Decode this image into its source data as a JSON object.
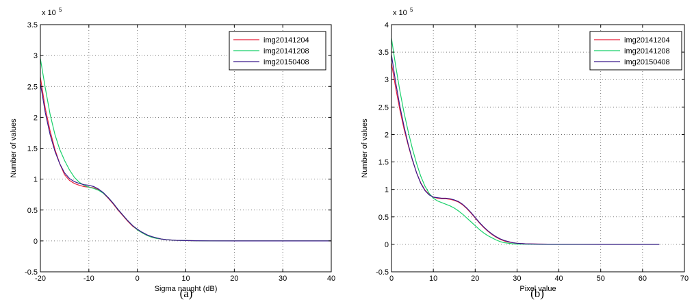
{
  "panel_labels": [
    "(a)",
    "(b)"
  ],
  "chart_data": [
    {
      "type": "line",
      "panel_label": "(a)",
      "xlabel": "Sigma naught (dB)",
      "ylabel": "Number of values",
      "exponent_label": "x 10",
      "exponent_power": "5",
      "xlim": [
        -20,
        40
      ],
      "ylim": [
        -0.5,
        3.5
      ],
      "xticks": [
        "-20",
        "-10",
        "0",
        "10",
        "20",
        "30",
        "40"
      ],
      "yticks": [
        "-0.5",
        "0",
        "0.5",
        "1",
        "1.5",
        "2",
        "2.5",
        "3",
        "3.5"
      ],
      "xtick_values": [
        -20,
        -10,
        0,
        10,
        20,
        30,
        40
      ],
      "ytick_values": [
        -0.5,
        0,
        0.5,
        1,
        1.5,
        2,
        2.5,
        3,
        3.5
      ],
      "grid": true,
      "legend_position": "top-right",
      "series": [
        {
          "name": "img20141204",
          "color": "#e8213b",
          "x": [
            -20,
            -19,
            -18,
            -17,
            -16,
            -15,
            -14,
            -13,
            -12,
            -11,
            -10,
            -9,
            -8,
            -7,
            -6,
            -5,
            -4,
            -3,
            -2,
            -1,
            0,
            1,
            2,
            3,
            4,
            5,
            6,
            8,
            10,
            12,
            15,
            20,
            25,
            30,
            35,
            40
          ],
          "y": [
            2.65,
            2.15,
            1.78,
            1.48,
            1.25,
            1.07,
            0.98,
            0.93,
            0.9,
            0.88,
            0.87,
            0.86,
            0.83,
            0.77,
            0.69,
            0.6,
            0.5,
            0.41,
            0.32,
            0.24,
            0.18,
            0.13,
            0.09,
            0.06,
            0.04,
            0.03,
            0.02,
            0.01,
            0.005,
            0.003,
            0.001,
            0,
            0,
            0,
            0,
            0
          ]
        },
        {
          "name": "img20141208",
          "color": "#19d16a",
          "x": [
            -20,
            -19,
            -18,
            -17,
            -16,
            -15,
            -14,
            -13,
            -12,
            -11,
            -10,
            -9,
            -8,
            -7,
            -6,
            -5,
            -4,
            -3,
            -2,
            -1,
            0,
            1,
            2,
            3,
            4,
            5,
            6,
            8,
            10,
            12,
            15,
            20,
            25,
            30,
            35,
            40
          ],
          "y": [
            2.95,
            2.48,
            2.05,
            1.72,
            1.48,
            1.3,
            1.15,
            1.03,
            0.95,
            0.9,
            0.87,
            0.85,
            0.82,
            0.77,
            0.7,
            0.61,
            0.51,
            0.42,
            0.33,
            0.25,
            0.18,
            0.13,
            0.09,
            0.06,
            0.04,
            0.03,
            0.02,
            0.01,
            0.005,
            0.003,
            0.001,
            0,
            0,
            0,
            0,
            0
          ]
        },
        {
          "name": "img20150408",
          "color": "#3a1a8c",
          "x": [
            -20,
            -19,
            -18,
            -17,
            -16,
            -15,
            -14,
            -13,
            -12,
            -11,
            -10,
            -9,
            -8,
            -7,
            -6,
            -5,
            -4,
            -3,
            -2,
            -1,
            0,
            1,
            2,
            3,
            4,
            5,
            6,
            8,
            10,
            12,
            15,
            20,
            25,
            30,
            35,
            40
          ],
          "y": [
            2.55,
            2.08,
            1.72,
            1.45,
            1.25,
            1.1,
            1.01,
            0.96,
            0.93,
            0.91,
            0.9,
            0.88,
            0.84,
            0.78,
            0.7,
            0.61,
            0.51,
            0.42,
            0.33,
            0.25,
            0.19,
            0.14,
            0.1,
            0.07,
            0.05,
            0.03,
            0.02,
            0.01,
            0.005,
            0.003,
            0.001,
            0,
            0,
            0,
            0,
            0
          ]
        }
      ]
    },
    {
      "type": "line",
      "panel_label": "(b)",
      "xlabel": "Pixel value",
      "ylabel": "Number of values",
      "exponent_label": "x 10",
      "exponent_power": "5",
      "xlim": [
        0,
        70
      ],
      "ylim": [
        -0.5,
        4
      ],
      "xticks": [
        "0",
        "10",
        "20",
        "30",
        "40",
        "50",
        "60",
        "70"
      ],
      "yticks": [
        "-0.5",
        "0",
        "0.5",
        "1",
        "1.5",
        "2",
        "2.5",
        "3",
        "3.5",
        "4"
      ],
      "xtick_values": [
        0,
        10,
        20,
        30,
        40,
        50,
        60,
        70
      ],
      "ytick_values": [
        -0.5,
        0,
        0.5,
        1,
        1.5,
        2,
        2.5,
        3,
        3.5,
        4
      ],
      "grid": true,
      "legend_position": "top-right",
      "series": [
        {
          "name": "img20141204",
          "color": "#e8213b",
          "x": [
            0,
            1,
            2,
            3,
            4,
            5,
            6,
            7,
            8,
            9,
            10,
            11,
            12,
            13,
            14,
            15,
            16,
            17,
            18,
            19,
            20,
            21,
            22,
            23,
            24,
            25,
            26,
            27,
            28,
            29,
            30,
            32,
            35,
            40,
            45,
            50,
            55,
            60,
            64
          ],
          "y": [
            3.3,
            2.85,
            2.45,
            2.1,
            1.8,
            1.53,
            1.3,
            1.12,
            0.99,
            0.91,
            0.86,
            0.84,
            0.83,
            0.83,
            0.82,
            0.8,
            0.77,
            0.72,
            0.65,
            0.57,
            0.48,
            0.39,
            0.31,
            0.24,
            0.18,
            0.13,
            0.09,
            0.06,
            0.04,
            0.03,
            0.02,
            0.01,
            0.005,
            0.002,
            0.001,
            0,
            0,
            0,
            0
          ]
        },
        {
          "name": "img20141208",
          "color": "#19d16a",
          "x": [
            0,
            1,
            2,
            3,
            4,
            5,
            6,
            7,
            8,
            9,
            10,
            11,
            12,
            13,
            14,
            15,
            16,
            17,
            18,
            19,
            20,
            21,
            22,
            23,
            24,
            25,
            26,
            27,
            28,
            29,
            30,
            32,
            35,
            40,
            45,
            50,
            55,
            60,
            64
          ],
          "y": [
            3.75,
            3.25,
            2.8,
            2.4,
            2.05,
            1.74,
            1.47,
            1.24,
            1.06,
            0.93,
            0.84,
            0.79,
            0.76,
            0.73,
            0.7,
            0.66,
            0.61,
            0.55,
            0.48,
            0.41,
            0.34,
            0.27,
            0.21,
            0.16,
            0.12,
            0.08,
            0.05,
            0.03,
            0.02,
            0.01,
            0.005,
            0.003,
            0.001,
            0,
            0,
            0,
            0,
            0,
            0
          ]
        },
        {
          "name": "img20150408",
          "color": "#3a1a8c",
          "x": [
            0,
            1,
            2,
            3,
            4,
            5,
            6,
            7,
            8,
            9,
            10,
            11,
            12,
            13,
            14,
            15,
            16,
            17,
            18,
            19,
            20,
            21,
            22,
            23,
            24,
            25,
            26,
            27,
            28,
            29,
            30,
            32,
            35,
            40,
            45,
            50,
            55,
            60,
            64
          ],
          "y": [
            3.45,
            2.95,
            2.52,
            2.15,
            1.82,
            1.54,
            1.3,
            1.11,
            0.98,
            0.9,
            0.86,
            0.85,
            0.84,
            0.84,
            0.83,
            0.81,
            0.78,
            0.73,
            0.66,
            0.58,
            0.49,
            0.4,
            0.32,
            0.25,
            0.19,
            0.14,
            0.1,
            0.07,
            0.05,
            0.03,
            0.02,
            0.01,
            0.005,
            0.002,
            0.001,
            0,
            0,
            0,
            0
          ]
        }
      ]
    }
  ]
}
